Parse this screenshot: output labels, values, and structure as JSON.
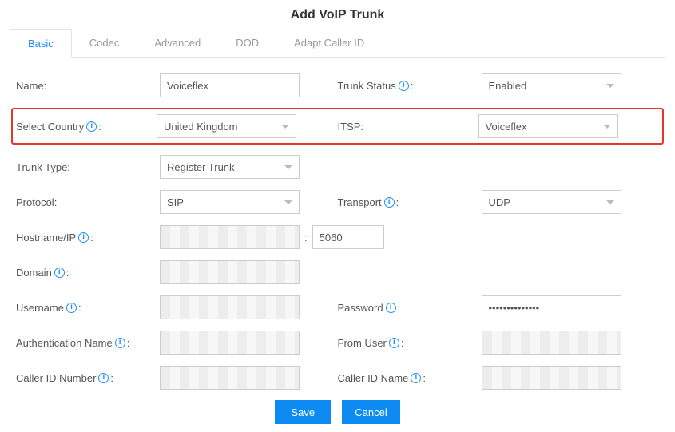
{
  "title": "Add VoIP Trunk",
  "tabs": [
    "Basic",
    "Codec",
    "Advanced",
    "DOD",
    "Adapt Caller ID"
  ],
  "active_tab_index": 0,
  "fields": {
    "name": {
      "label": "Name:",
      "value": "Voiceflex"
    },
    "trunk_status": {
      "label": "Trunk Status",
      "value": "Enabled"
    },
    "select_country": {
      "label": "Select Country",
      "value": "United Kingdom"
    },
    "itsp": {
      "label": "ITSP:",
      "value": "Voiceflex"
    },
    "trunk_type": {
      "label": "Trunk Type:",
      "value": "Register Trunk"
    },
    "protocol": {
      "label": "Protocol:",
      "value": "SIP"
    },
    "transport": {
      "label": "Transport",
      "value": "UDP"
    },
    "hostname": {
      "label": "Hostname/IP",
      "port": "5060"
    },
    "domain": {
      "label": "Domain"
    },
    "username": {
      "label": "Username"
    },
    "password": {
      "label": "Password",
      "value": "••••••••••••••"
    },
    "auth_name": {
      "label": "Authentication Name"
    },
    "from_user": {
      "label": "From User"
    },
    "caller_id_number": {
      "label": "Caller ID Number"
    },
    "caller_id_name": {
      "label": "Caller ID Name"
    }
  },
  "buttons": {
    "save": "Save",
    "cancel": "Cancel"
  },
  "colors": {
    "accent": "#1E90FF",
    "highlight_border": "#e6352b",
    "button_bg": "#0d8bf2"
  }
}
